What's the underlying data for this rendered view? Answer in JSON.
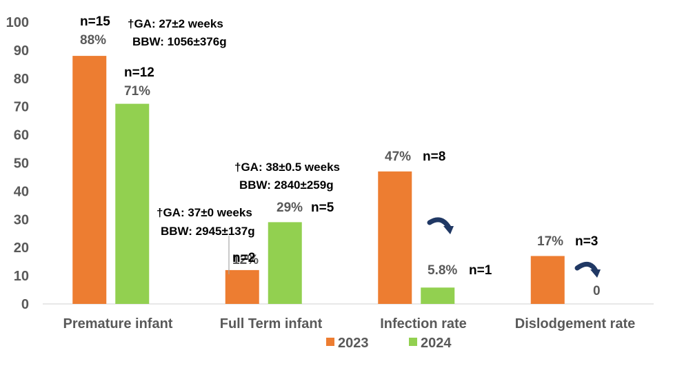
{
  "chart_data": {
    "type": "bar",
    "categories": [
      "Premature infant",
      "Full Term infant",
      "Infection rate",
      "Dislodgement rate"
    ],
    "series": [
      {
        "name": "2023",
        "color": "#ED7D31",
        "values": [
          88,
          12,
          47,
          17
        ]
      },
      {
        "name": "2024",
        "color": "#92D050",
        "values": [
          71,
          29,
          5.8,
          0
        ]
      }
    ],
    "ylim": [
      0,
      100
    ],
    "yticks": [
      0,
      10,
      20,
      30,
      40,
      50,
      60,
      70,
      80,
      90,
      100
    ],
    "grid": false,
    "legend_position": "bottom",
    "data_labels": [
      [
        "88%",
        "12%",
        "47%",
        "17%"
      ],
      [
        "71%",
        "29%",
        "5.8%",
        "0"
      ]
    ],
    "n_labels": [
      [
        "n=15",
        "n=2",
        "n=8",
        "n=3"
      ],
      [
        "n=12",
        "n=5",
        "n=1",
        ""
      ]
    ],
    "annotations": [
      {
        "line1": "†GA: 27±2 weeks",
        "line2": "BBW: 1056±376g"
      },
      {
        "line1": "†GA: 38±0.5 weeks",
        "line2": "BBW: 2840±259g"
      },
      {
        "line1": "†GA: 37±0 weeks",
        "line2": "BBW: 2945±137g"
      }
    ],
    "arrow_color": "#203864"
  }
}
